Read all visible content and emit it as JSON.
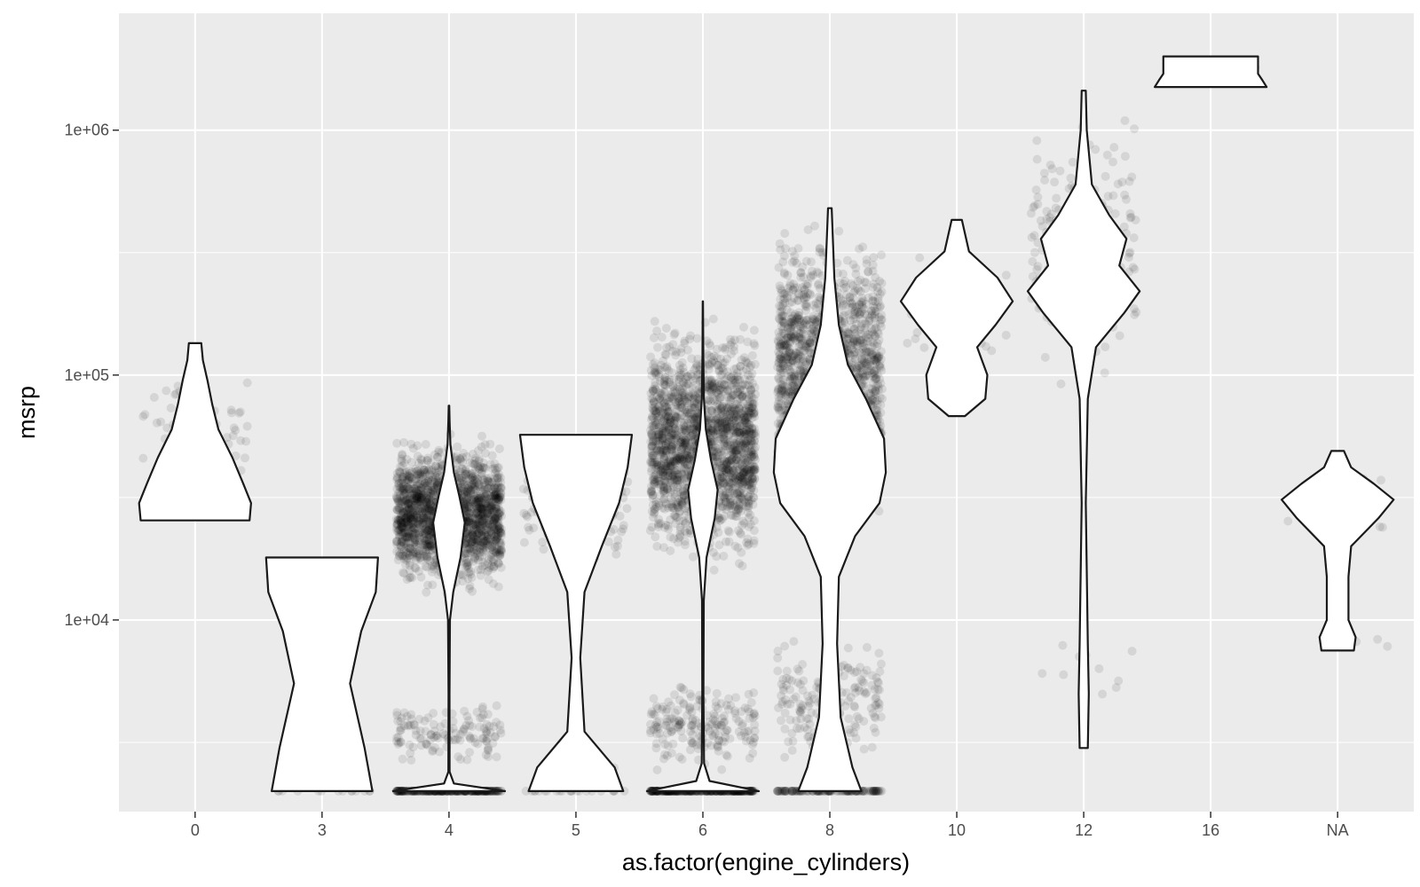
{
  "chart_data": {
    "type": "violin",
    "title": "",
    "xlabel": "as.factor(engine_cylinders)",
    "ylabel": "msrp",
    "y_scale": "log10",
    "ylim": [
      1650,
      3000000
    ],
    "categories": [
      "0",
      "3",
      "4",
      "5",
      "6",
      "8",
      "10",
      "12",
      "16",
      "NA"
    ],
    "y_ticks": [
      {
        "value": 10000,
        "label": "1e+04"
      },
      {
        "value": 100000,
        "label": "1e+05"
      },
      {
        "value": 1000000,
        "label": "1e+06"
      }
    ],
    "grid": true,
    "colors": {
      "panel_background": "#ebebeb",
      "grid_line": "#ffffff",
      "violin_fill": "#ffffff",
      "violin_outline": "#1a1a1a",
      "point": "#000000"
    },
    "point_opacity": 0.09,
    "groups": [
      {
        "category": "0",
        "min": 25500,
        "max": 135000,
        "count": 55,
        "jitter_clusters": [
          {
            "lo": 25500,
            "hi": 135000,
            "n": 55
          }
        ],
        "density_profile": [
          [
            25500,
            0.7
          ],
          [
            30000,
            0.72
          ],
          [
            36000,
            0.62
          ],
          [
            46000,
            0.48
          ],
          [
            60000,
            0.3
          ],
          [
            76000,
            0.22
          ],
          [
            95000,
            0.16
          ],
          [
            115000,
            0.1
          ],
          [
            135000,
            0.08
          ]
        ]
      },
      {
        "category": "3",
        "min": 2000,
        "max": 18000,
        "count": 30,
        "jitter_clusters": [
          {
            "lo": 2000,
            "hi": 2000,
            "n": 14
          },
          {
            "lo": 12000,
            "hi": 18000,
            "n": 16
          }
        ],
        "density_profile": [
          [
            2000,
            0.45
          ],
          [
            3000,
            0.38
          ],
          [
            5500,
            0.25
          ],
          [
            9000,
            0.35
          ],
          [
            13000,
            0.48
          ],
          [
            18000,
            0.5
          ]
        ]
      },
      {
        "category": "4",
        "min": 2000,
        "max": 75000,
        "count": 2300,
        "jitter_clusters": [
          {
            "lo": 2000,
            "hi": 2000,
            "n": 280
          },
          {
            "lo": 2400,
            "hi": 5000,
            "n": 130
          },
          {
            "lo": 12000,
            "hi": 60000,
            "n": 1890
          }
        ],
        "density_profile": [
          [
            2000,
            4.6
          ],
          [
            2150,
            0.4
          ],
          [
            2400,
            0.05
          ],
          [
            5000,
            0.04
          ],
          [
            10000,
            0.08
          ],
          [
            13000,
            0.35
          ],
          [
            18000,
            0.95
          ],
          [
            25000,
            1.3
          ],
          [
            32000,
            0.85
          ],
          [
            40000,
            0.4
          ],
          [
            52000,
            0.12
          ],
          [
            65000,
            0.05
          ],
          [
            75000,
            0.02
          ]
        ]
      },
      {
        "category": "5",
        "min": 2000,
        "max": 57000,
        "count": 200,
        "jitter_clusters": [
          {
            "lo": 2000,
            "hi": 2000,
            "n": 22
          },
          {
            "lo": 2200,
            "hi": 2700,
            "n": 16
          },
          {
            "lo": 15000,
            "hi": 57000,
            "n": 162
          }
        ],
        "density_profile": [
          [
            2000,
            0.55
          ],
          [
            2500,
            0.45
          ],
          [
            3500,
            0.1
          ],
          [
            7000,
            0.05
          ],
          [
            13000,
            0.1
          ],
          [
            20000,
            0.3
          ],
          [
            30000,
            0.5
          ],
          [
            42000,
            0.6
          ],
          [
            57000,
            0.65
          ]
        ]
      },
      {
        "category": "6",
        "min": 2000,
        "max": 200000,
        "count": 2500,
        "jitter_clusters": [
          {
            "lo": 2000,
            "hi": 2000,
            "n": 330
          },
          {
            "lo": 2300,
            "hi": 6000,
            "n": 200
          },
          {
            "lo": 15000,
            "hi": 190000,
            "n": 1970
          }
        ],
        "density_profile": [
          [
            2000,
            3.8
          ],
          [
            2200,
            0.45
          ],
          [
            2600,
            0.08
          ],
          [
            5000,
            0.04
          ],
          [
            12000,
            0.06
          ],
          [
            18000,
            0.25
          ],
          [
            26000,
            0.8
          ],
          [
            34000,
            1.0
          ],
          [
            45000,
            0.55
          ],
          [
            60000,
            0.2
          ],
          [
            80000,
            0.07
          ],
          [
            120000,
            0.03
          ],
          [
            200000,
            0.01
          ]
        ]
      },
      {
        "category": "8",
        "min": 2000,
        "max": 480000,
        "count": 2000,
        "jitter_clusters": [
          {
            "lo": 2000,
            "hi": 2000,
            "n": 150
          },
          {
            "lo": 2300,
            "hi": 9500,
            "n": 190
          },
          {
            "lo": 22000,
            "hi": 480000,
            "n": 1660
          }
        ],
        "density_profile": [
          [
            2000,
            0.35
          ],
          [
            2500,
            0.25
          ],
          [
            4000,
            0.12
          ],
          [
            8000,
            0.08
          ],
          [
            15000,
            0.1
          ],
          [
            22000,
            0.28
          ],
          [
            30000,
            0.55
          ],
          [
            40000,
            0.62
          ],
          [
            55000,
            0.6
          ],
          [
            80000,
            0.4
          ],
          [
            110000,
            0.2
          ],
          [
            160000,
            0.1
          ],
          [
            250000,
            0.05
          ],
          [
            480000,
            0.02
          ]
        ]
      },
      {
        "category": "10",
        "min": 68000,
        "max": 430000,
        "count": 45,
        "jitter_clusters": [
          {
            "lo": 68000,
            "hi": 430000,
            "n": 45
          }
        ],
        "density_profile": [
          [
            68000,
            0.08
          ],
          [
            80000,
            0.28
          ],
          [
            100000,
            0.3
          ],
          [
            130000,
            0.2
          ],
          [
            160000,
            0.38
          ],
          [
            200000,
            0.55
          ],
          [
            250000,
            0.4
          ],
          [
            320000,
            0.12
          ],
          [
            430000,
            0.05
          ]
        ]
      },
      {
        "category": "12",
        "min": 3000,
        "max": 1450000,
        "count": 210,
        "jitter_clusters": [
          {
            "lo": 3000,
            "hi": 12000,
            "n": 10
          },
          {
            "lo": 80000,
            "hi": 1400000,
            "n": 200
          }
        ],
        "density_profile": [
          [
            3000,
            0.04
          ],
          [
            5000,
            0.05
          ],
          [
            8000,
            0.04
          ],
          [
            30000,
            0.02
          ],
          [
            80000,
            0.04
          ],
          [
            130000,
            0.12
          ],
          [
            180000,
            0.4
          ],
          [
            220000,
            0.55
          ],
          [
            280000,
            0.35
          ],
          [
            360000,
            0.42
          ],
          [
            450000,
            0.25
          ],
          [
            600000,
            0.08
          ],
          [
            1000000,
            0.03
          ],
          [
            1450000,
            0.02
          ]
        ]
      },
      {
        "category": "16",
        "min": 1500000,
        "max": 2000000,
        "count": 3,
        "jitter_clusters": [
          {
            "lo": 1500000,
            "hi": 2000000,
            "n": 3
          }
        ],
        "density_profile": [
          [
            1500000,
            0.65
          ],
          [
            1600000,
            0.6
          ],
          [
            1700000,
            0.55
          ],
          [
            1800000,
            0.55
          ],
          [
            2000000,
            0.55
          ]
        ]
      },
      {
        "category": "NA",
        "min": 7500,
        "max": 49000,
        "count": 30,
        "jitter_clusters": [
          {
            "lo": 7500,
            "hi": 9000,
            "n": 4
          },
          {
            "lo": 20000,
            "hi": 49000,
            "n": 26
          }
        ],
        "density_profile": [
          [
            7500,
            0.18
          ],
          [
            8500,
            0.2
          ],
          [
            10000,
            0.12
          ],
          [
            15000,
            0.12
          ],
          [
            20000,
            0.15
          ],
          [
            26000,
            0.45
          ],
          [
            31000,
            0.62
          ],
          [
            36000,
            0.4
          ],
          [
            42000,
            0.15
          ],
          [
            49000,
            0.07
          ]
        ]
      }
    ]
  }
}
